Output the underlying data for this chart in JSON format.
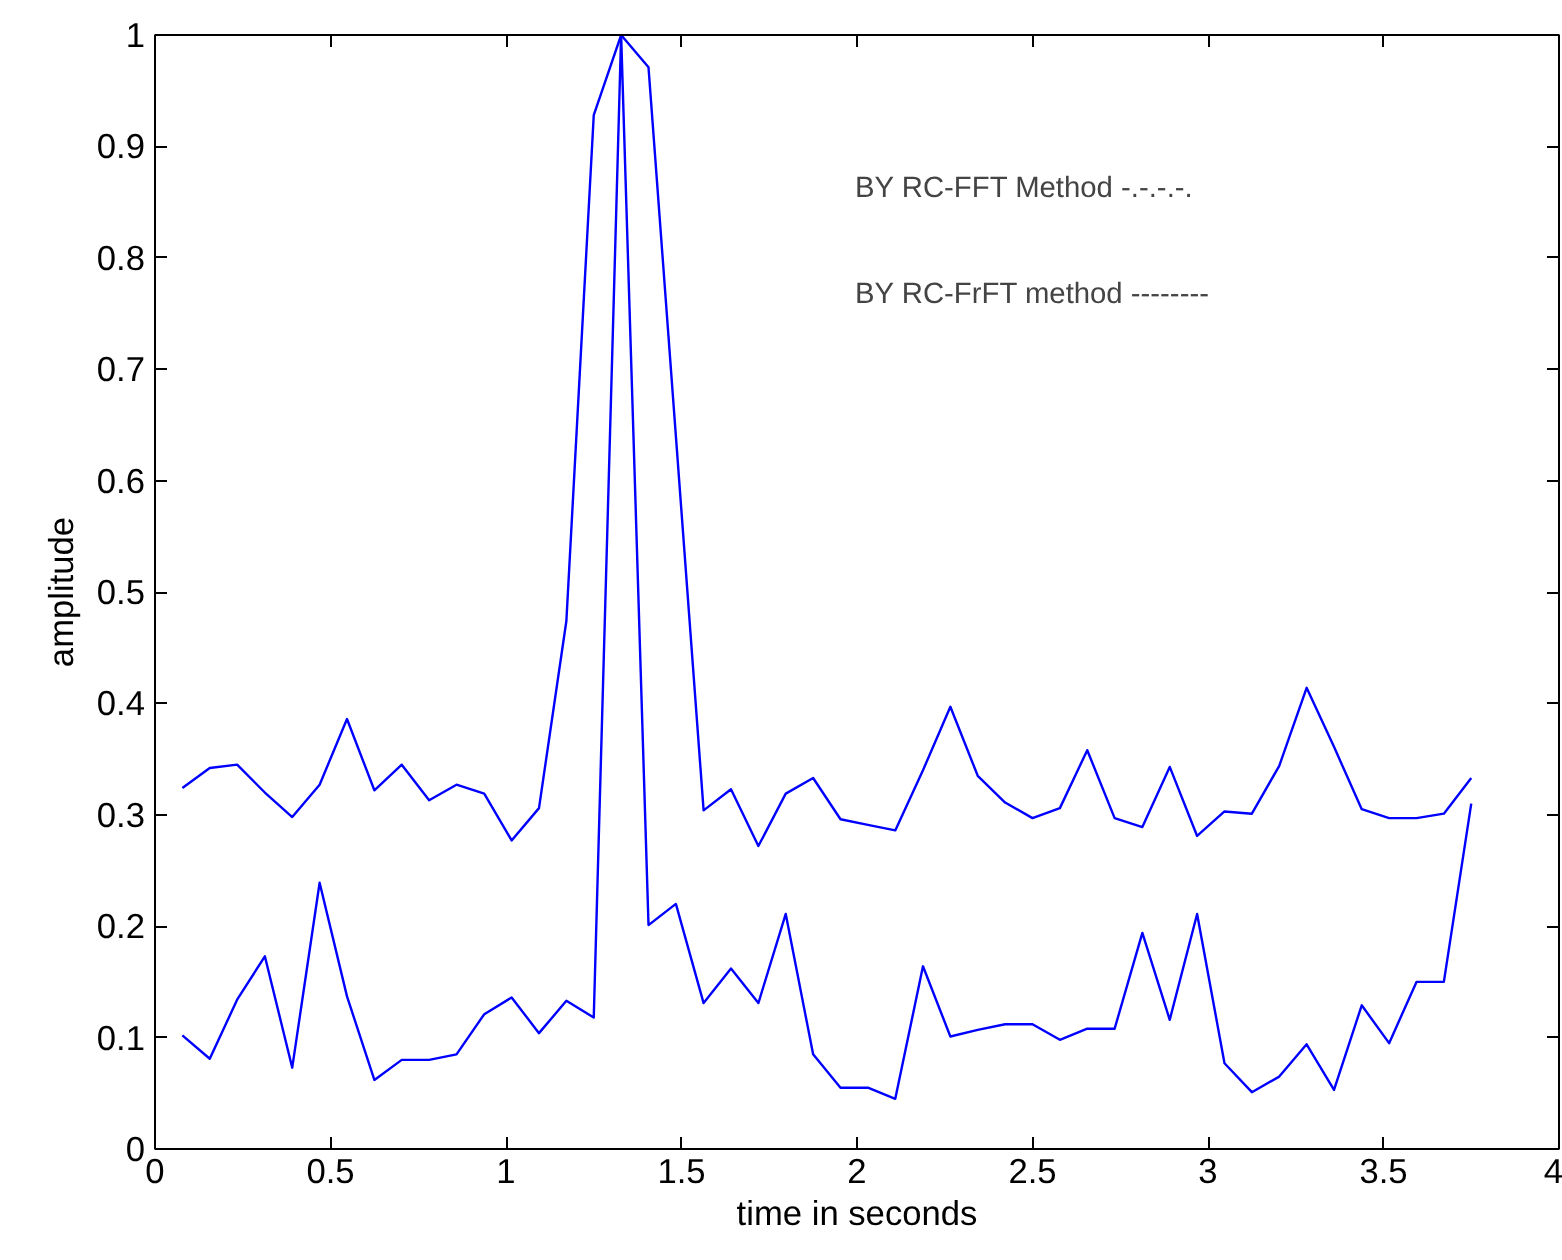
{
  "chart_data": {
    "type": "line",
    "xlabel": "time in seconds",
    "ylabel": "amplitude",
    "x": [
      0.078,
      0.156,
      0.234,
      0.313,
      0.391,
      0.469,
      0.547,
      0.625,
      0.703,
      0.781,
      0.859,
      0.938,
      1.016,
      1.094,
      1.172,
      1.25,
      1.328,
      1.406,
      1.484,
      1.563,
      1.641,
      1.719,
      1.797,
      1.875,
      1.953,
      2.031,
      2.109,
      2.188,
      2.266,
      2.344,
      2.422,
      2.5,
      2.578,
      2.656,
      2.734,
      2.813,
      2.891,
      2.969,
      3.047,
      3.125,
      3.203,
      3.281,
      3.359,
      3.438,
      3.516,
      3.594,
      3.672,
      3.75
    ],
    "series": [
      {
        "color": "#0000ff",
        "values": [
          0.324,
          0.342,
          0.345,
          0.32,
          0.298,
          0.327,
          0.386,
          0.322,
          0.345,
          0.313,
          0.327,
          0.319,
          0.277,
          0.306,
          0.474,
          0.928,
          1.0,
          0.971,
          0.64,
          0.304,
          0.323,
          0.272,
          0.319,
          0.333,
          0.296,
          0.291,
          0.286,
          0.34,
          0.397,
          0.335,
          0.311,
          0.297,
          0.306,
          0.358,
          0.297,
          0.289,
          0.343,
          0.281,
          0.303,
          0.301,
          0.344,
          0.414,
          0.361,
          0.305,
          0.297,
          0.297,
          0.301,
          0.333
        ]
      },
      {
        "color": "#0000ff",
        "values": [
          0.102,
          0.081,
          0.134,
          0.173,
          0.073,
          0.239,
          0.137,
          0.062,
          0.08,
          0.08,
          0.085,
          0.121,
          0.136,
          0.104,
          0.133,
          0.118,
          1.0,
          0.201,
          0.22,
          0.131,
          0.162,
          0.131,
          0.211,
          0.085,
          0.055,
          0.055,
          0.045,
          0.164,
          0.101,
          0.107,
          0.112,
          0.112,
          0.098,
          0.108,
          0.108,
          0.194,
          0.116,
          0.211,
          0.077,
          0.051,
          0.065,
          0.094,
          0.053,
          0.129,
          0.095,
          0.15,
          0.15,
          0.31
        ]
      }
    ],
    "xlim": [
      0,
      4
    ],
    "xticks": [
      0,
      0.5,
      1,
      1.5,
      2,
      2.5,
      3,
      3.5,
      4
    ],
    "ylim": [
      0,
      1
    ],
    "yticks": [
      0,
      0.1,
      0.2,
      0.3,
      0.4,
      0.5,
      0.6,
      0.7,
      0.8,
      0.9,
      1
    ],
    "grid": false,
    "marker": "none",
    "line_style": "solid",
    "annotations": [
      "BY RC-FFT Method  -.-.-.-.",
      "BY RC-FrFT method  --------"
    ]
  }
}
